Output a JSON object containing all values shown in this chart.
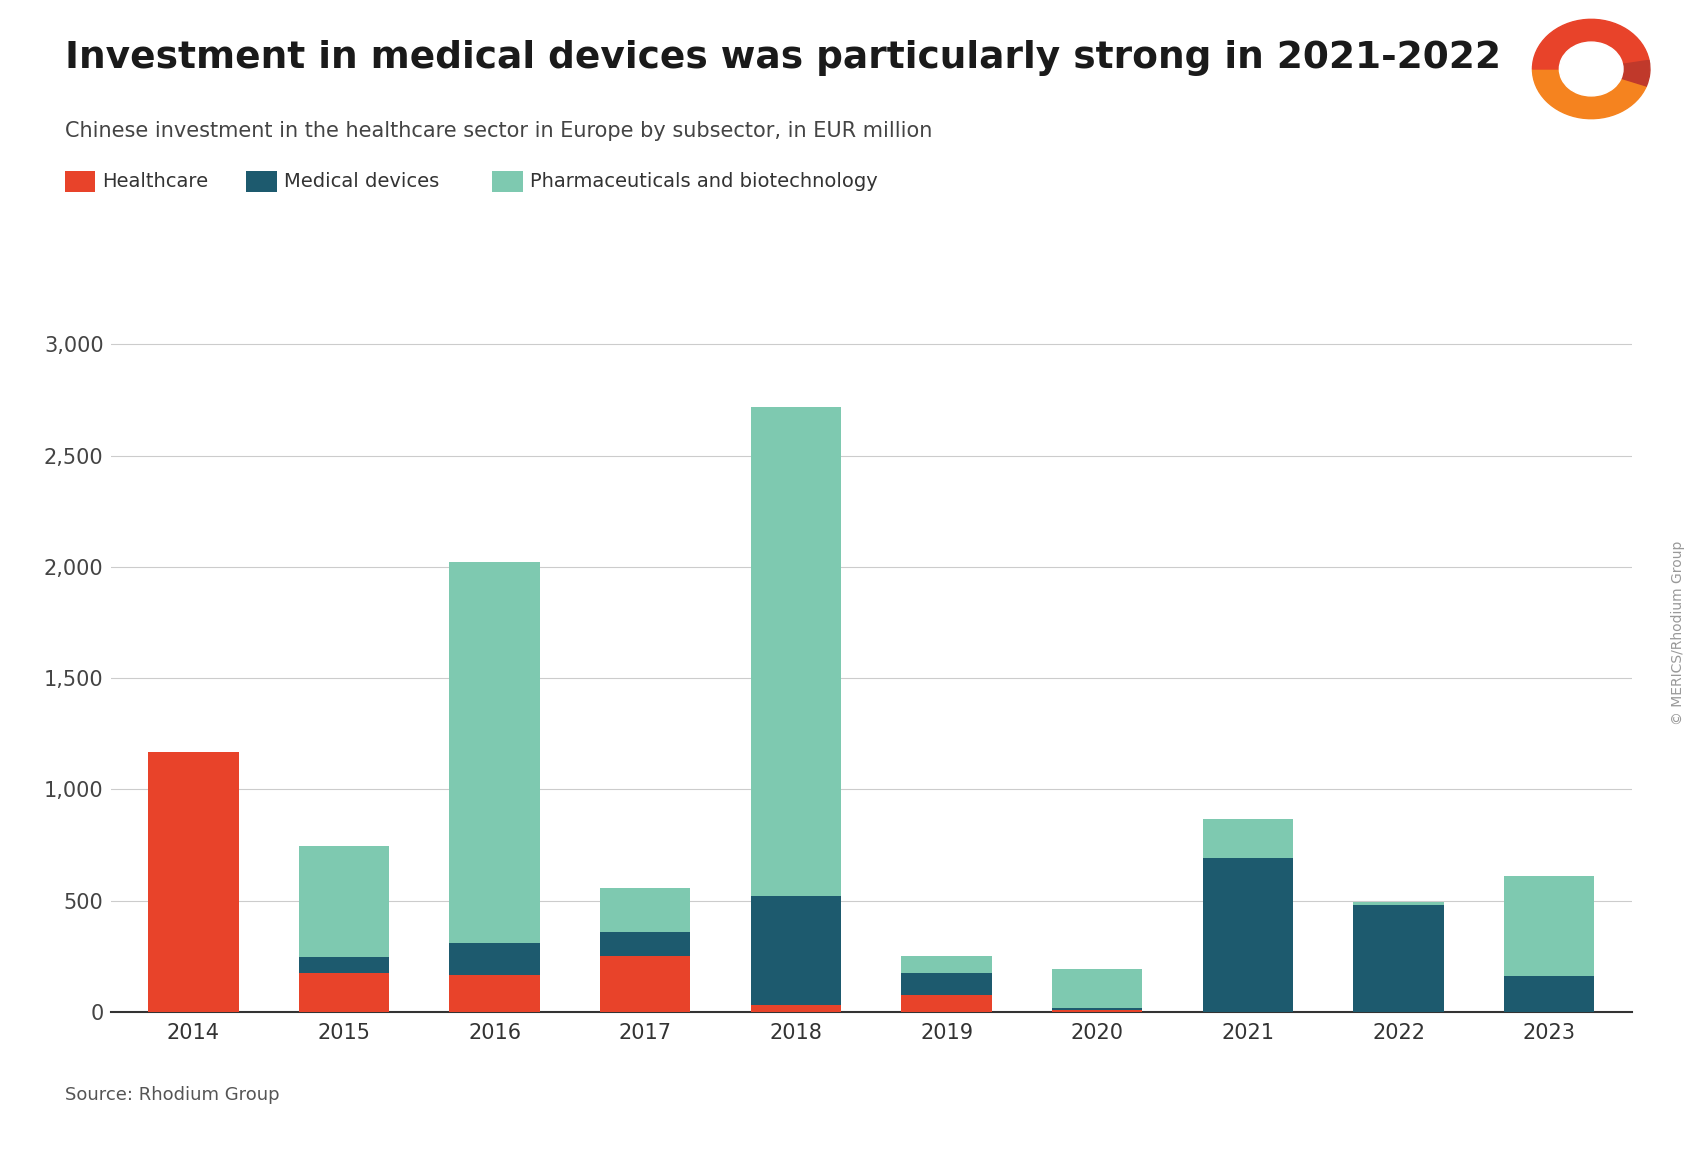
{
  "years": [
    "2014",
    "2015",
    "2016",
    "2017",
    "2018",
    "2019",
    "2020",
    "2021",
    "2022",
    "2023"
  ],
  "healthcare": [
    1170,
    175,
    165,
    250,
    30,
    75,
    10,
    0,
    0,
    0
  ],
  "medical_devices": [
    0,
    70,
    145,
    110,
    490,
    100,
    10,
    690,
    480,
    160
  ],
  "pharma_biotech": [
    0,
    500,
    1710,
    195,
    2200,
    75,
    175,
    175,
    15,
    450
  ],
  "colors": {
    "healthcare": "#e8432a",
    "medical_devices": "#1d5a6e",
    "pharma_biotech": "#7ec9b0"
  },
  "title": "Investment in medical devices was particularly strong in 2021-2022",
  "subtitle": "Chinese investment in the healthcare sector in Europe by subsector, in EUR million",
  "legend_labels": [
    "Healthcare",
    "Medical devices",
    "Pharmaceuticals and biotechnology"
  ],
  "yticks": [
    0,
    500,
    1000,
    1500,
    2000,
    2500,
    3000
  ],
  "ytick_labels": [
    "0",
    "500",
    "1,000",
    "1,500",
    "2,000",
    "2,500",
    "3,000"
  ],
  "ylim": [
    0,
    3100
  ],
  "source_text": "Source: Rhodium Group",
  "copyright_text": "© MERICS/Rhodium Group",
  "background_color": "#ffffff"
}
